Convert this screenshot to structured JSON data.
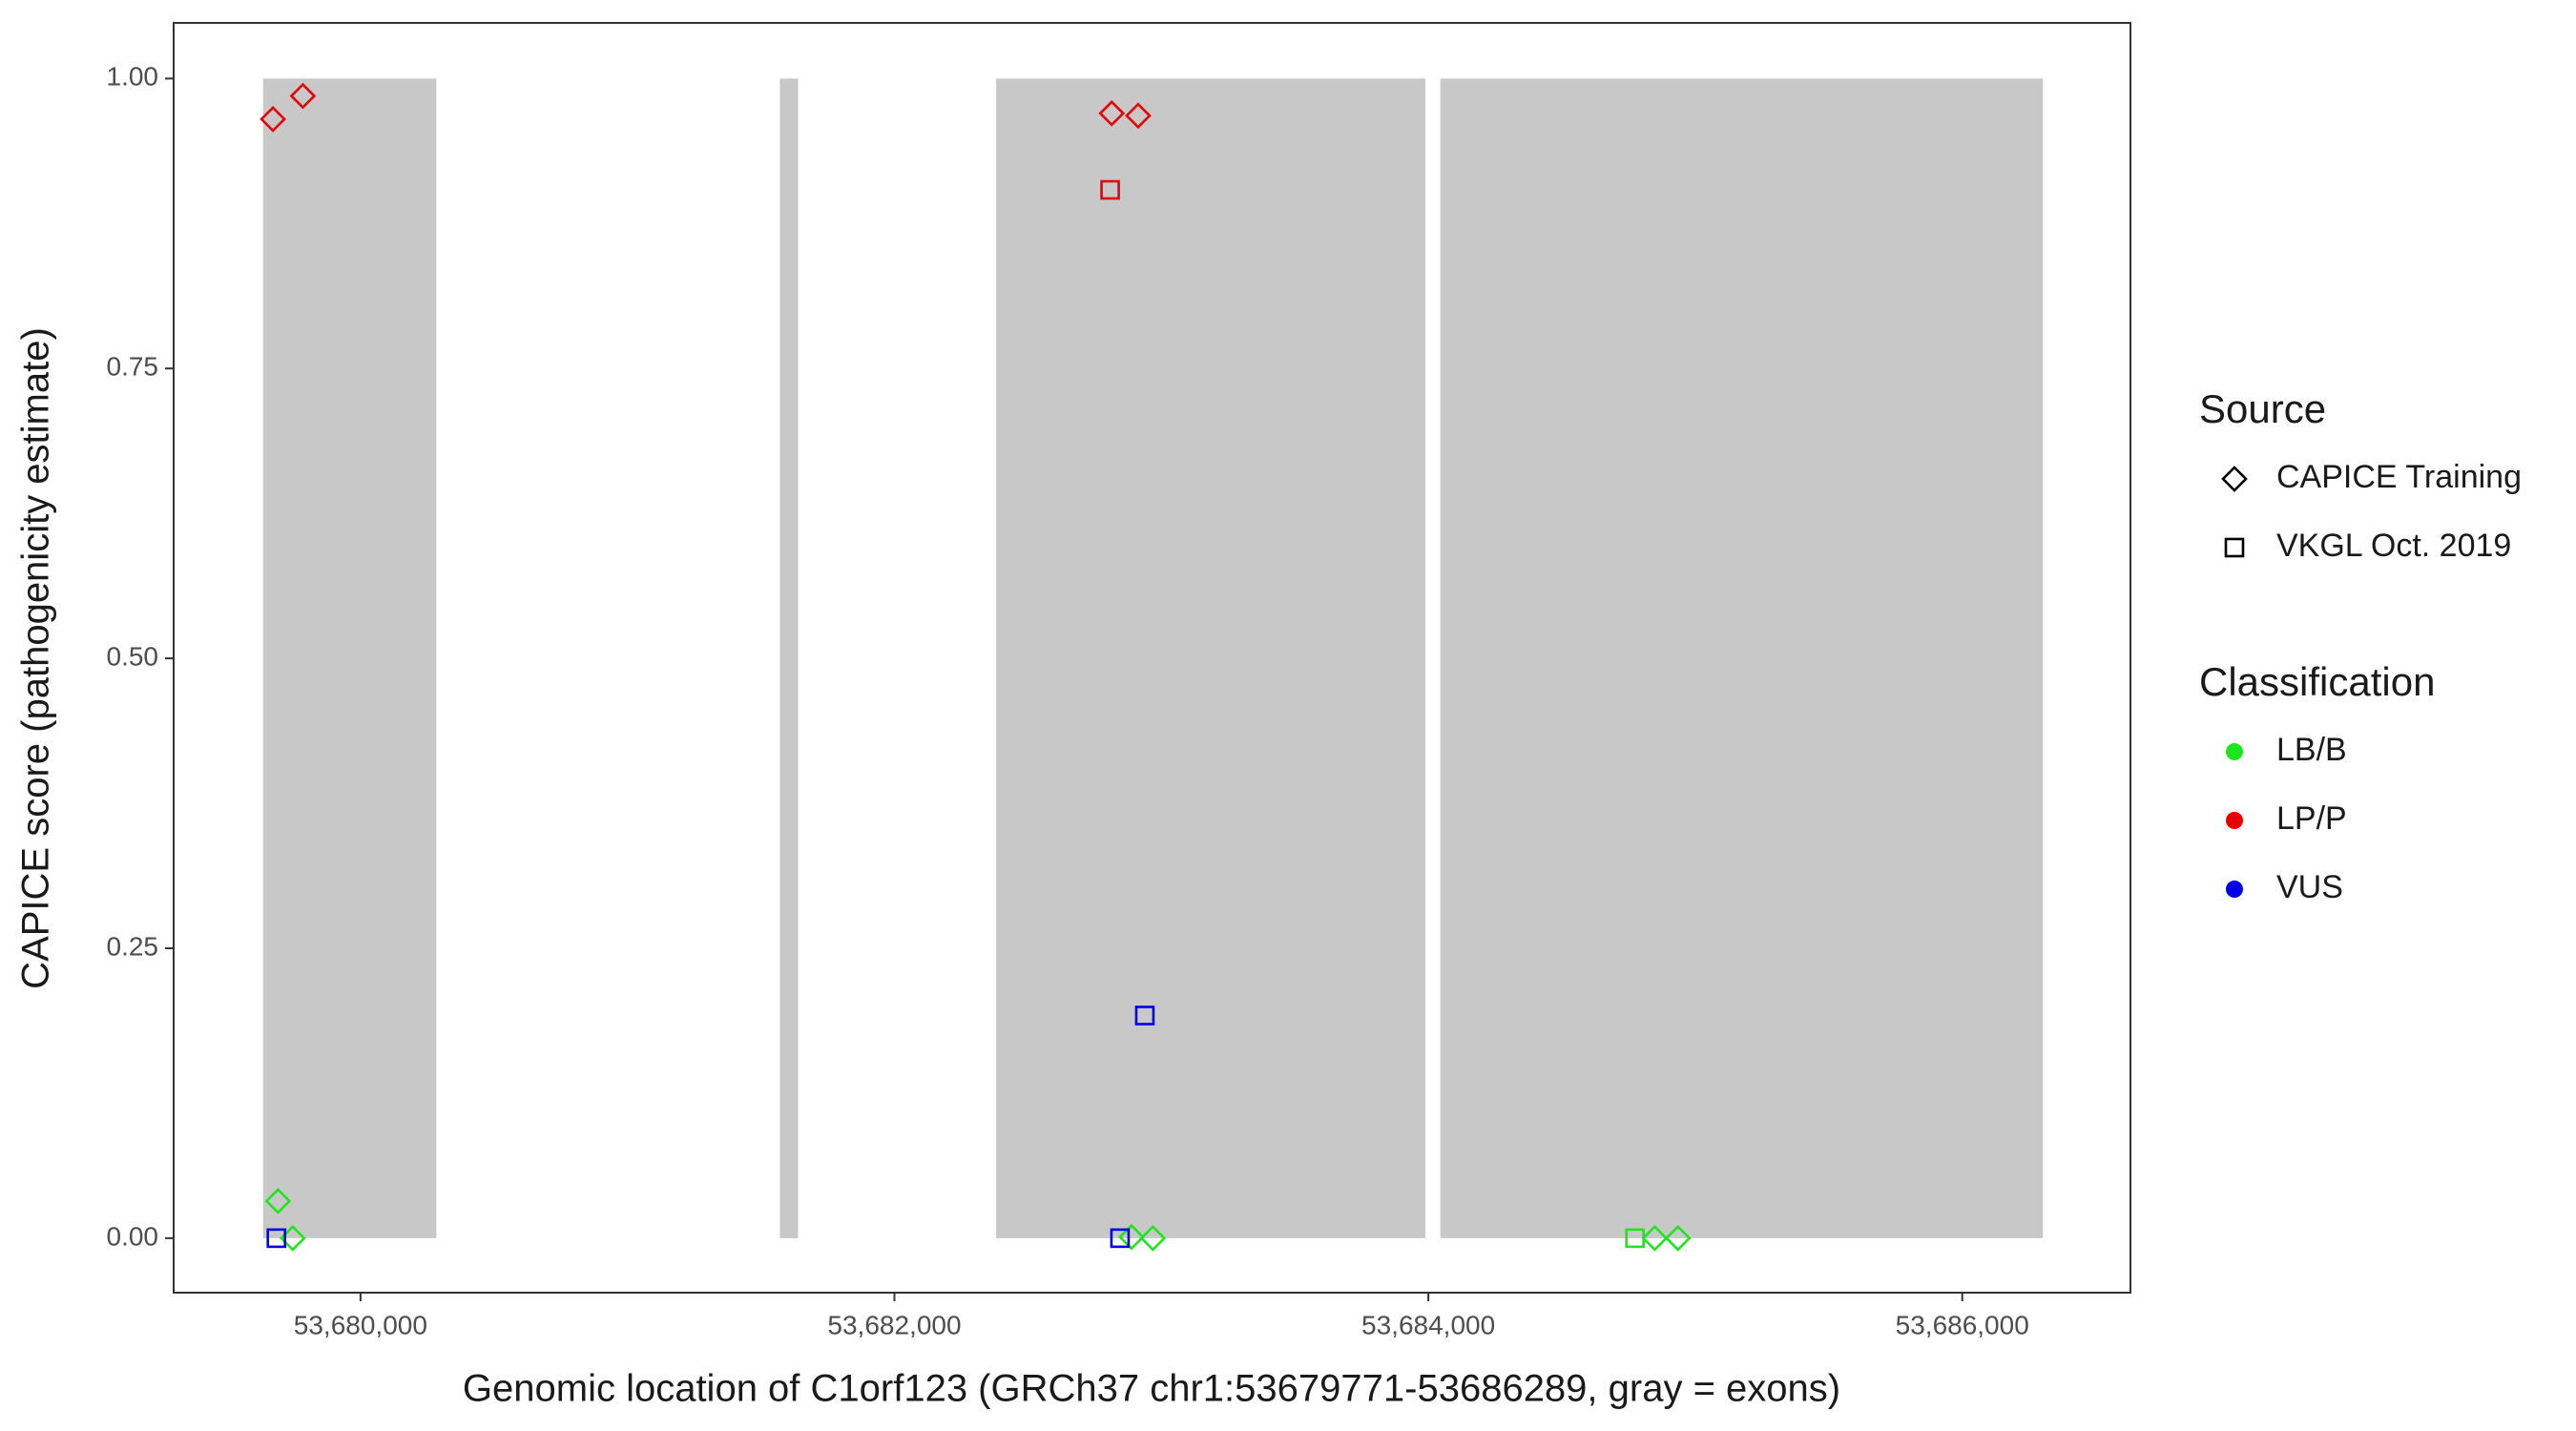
{
  "chart_data": {
    "type": "scatter",
    "x_label": "Genomic location of C1orf123 (GRCh37 chr1:53679771-53686289, gray = exons)",
    "y_label": "CAPICE score (pathogenicity estimate)",
    "xlim": [
      53679300,
      53686630
    ],
    "ylim": [
      -0.047,
      1.048
    ],
    "xticks": [
      {
        "value": 53680000,
        "label": "53,680,000"
      },
      {
        "value": 53682000,
        "label": "53,682,000"
      },
      {
        "value": 53684000,
        "label": "53,684,000"
      },
      {
        "value": 53686000,
        "label": "53,686,000"
      }
    ],
    "yticks": [
      {
        "value": 0,
        "label": "0.00"
      },
      {
        "value": 0.25,
        "label": "0.25"
      },
      {
        "value": 0.5,
        "label": "0.50"
      },
      {
        "value": 0.75,
        "label": "0.75"
      },
      {
        "value": 1,
        "label": "1.00"
      }
    ],
    "exon_color": "#c8c8c8",
    "exons": [
      [
        53679635,
        53680284
      ],
      [
        53681571,
        53681639
      ],
      [
        53682381,
        53683989
      ],
      [
        53684045,
        53686302
      ]
    ],
    "x": [
      53679672,
      53679784,
      53682814,
      53682913,
      53679691,
      53679746,
      53682888,
      53682968,
      53684848,
      53684935,
      53682808,
      53682938,
      53679685,
      53682845,
      53684774
    ],
    "y": [
      0.965,
      0.985,
      0.97,
      0.968,
      0.032,
      0,
      0.001,
      0,
      0,
      0,
      0.904,
      0.192,
      0,
      0,
      0
    ],
    "shapes": [
      "diamond",
      "diamond",
      "diamond",
      "diamond",
      "diamond",
      "diamond",
      "diamond",
      "diamond",
      "diamond",
      "diamond",
      "square",
      "square",
      "square",
      "square",
      "square"
    ],
    "colors": [
      "#e60000",
      "#e60000",
      "#e60000",
      "#e60000",
      "#1ee61e",
      "#1ee61e",
      "#1ee61e",
      "#1ee61e",
      "#1ee61e",
      "#1ee61e",
      "#e60000",
      "#0000e6",
      "#0000e6",
      "#0000e6",
      "#1ee61e"
    ],
    "legends": [
      {
        "title": "Source",
        "entries": [
          {
            "label": "CAPICE Training",
            "shape": "diamond"
          },
          {
            "label": "VKGL Oct. 2019",
            "shape": "square"
          }
        ]
      },
      {
        "title": "Classification",
        "entries": [
          {
            "label": "LB/B",
            "color": "#1ee61e"
          },
          {
            "label": "LP/P",
            "color": "#e60000"
          },
          {
            "label": "VUS",
            "color": "#0000e6"
          }
        ]
      }
    ]
  }
}
